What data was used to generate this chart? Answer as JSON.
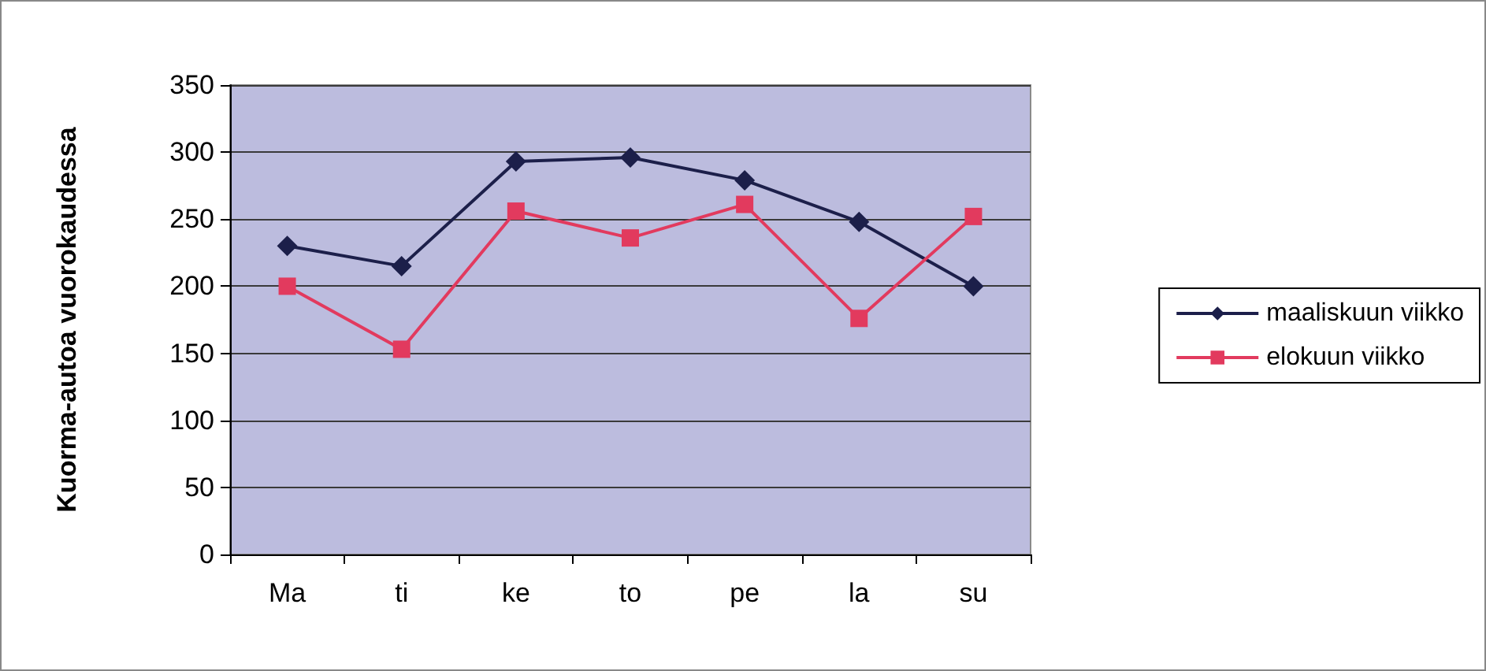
{
  "chart_data": {
    "type": "line",
    "ylabel": "Kuorma-autoa vuorokaudessa",
    "categories": [
      "Ma",
      "ti",
      "ke",
      "to",
      "pe",
      "la",
      "su"
    ],
    "series": [
      {
        "name": "maaliskuun viikko",
        "color": "#1c1f4a",
        "marker": "diamond",
        "values": [
          230,
          215,
          293,
          296,
          279,
          248,
          200
        ]
      },
      {
        "name": "elokuun viikko",
        "color": "#e23a5e",
        "marker": "square",
        "values": [
          200,
          153,
          256,
          236,
          261,
          176,
          252
        ]
      }
    ],
    "ylim": [
      0,
      350
    ],
    "yticks": [
      0,
      50,
      100,
      150,
      200,
      250,
      300,
      350
    ],
    "grid": "y",
    "legend": "right",
    "line_style": "solid"
  }
}
